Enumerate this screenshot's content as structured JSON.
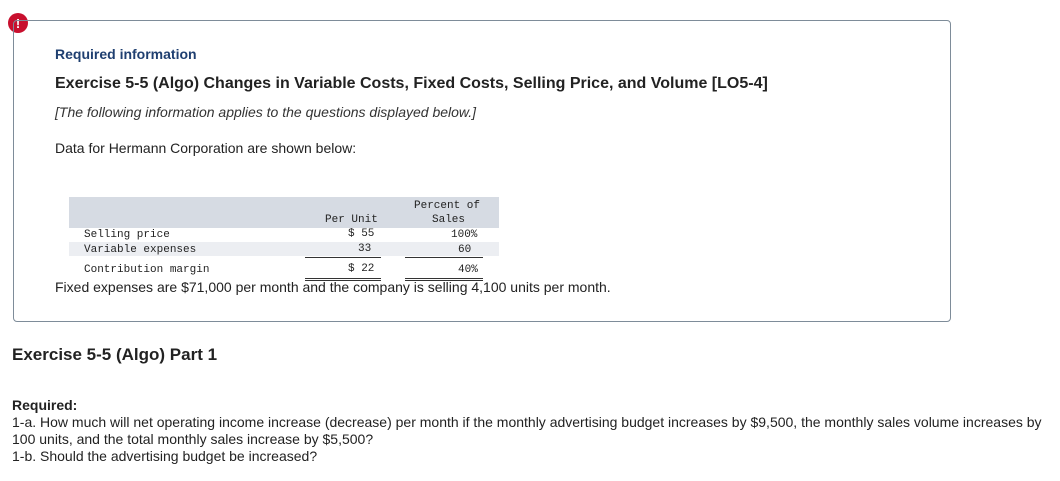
{
  "alert_symbol": "!",
  "panel": {
    "required_info": "Required information",
    "exercise_title": "Exercise 5-5 (Algo) Changes in Variable Costs, Fixed Costs, Selling Price, and Volume [LO5-4]",
    "note": "[The following information applies to the questions displayed below.]",
    "intro": "Data for Hermann Corporation are shown below:",
    "table": {
      "col_per_unit_line1": "",
      "col_per_unit_line2": "Per Unit",
      "col_percent_line1": "Percent of",
      "col_percent_line2": "Sales",
      "rows": [
        {
          "label": "Selling price",
          "per_unit": "$ 55",
          "percent": "100%"
        },
        {
          "label": "Variable expenses",
          "per_unit": "33",
          "percent": "60"
        },
        {
          "label": "Contribution margin",
          "per_unit": "$ 22",
          "percent": "40%"
        }
      ]
    },
    "fixed_text": "Fixed expenses are $71,000 per month and the company is selling 4,100 units per month."
  },
  "part": {
    "title": "Exercise 5-5 (Algo) Part 1",
    "required_label": "Required:",
    "q1a": "1-a. How much will net operating income increase (decrease) per month if the monthly advertising budget increases by $9,500, the monthly sales volume increases by 100 units, and the total monthly sales increase by $5,500?",
    "q1b": "1-b. Should the advertising budget be increased?"
  }
}
